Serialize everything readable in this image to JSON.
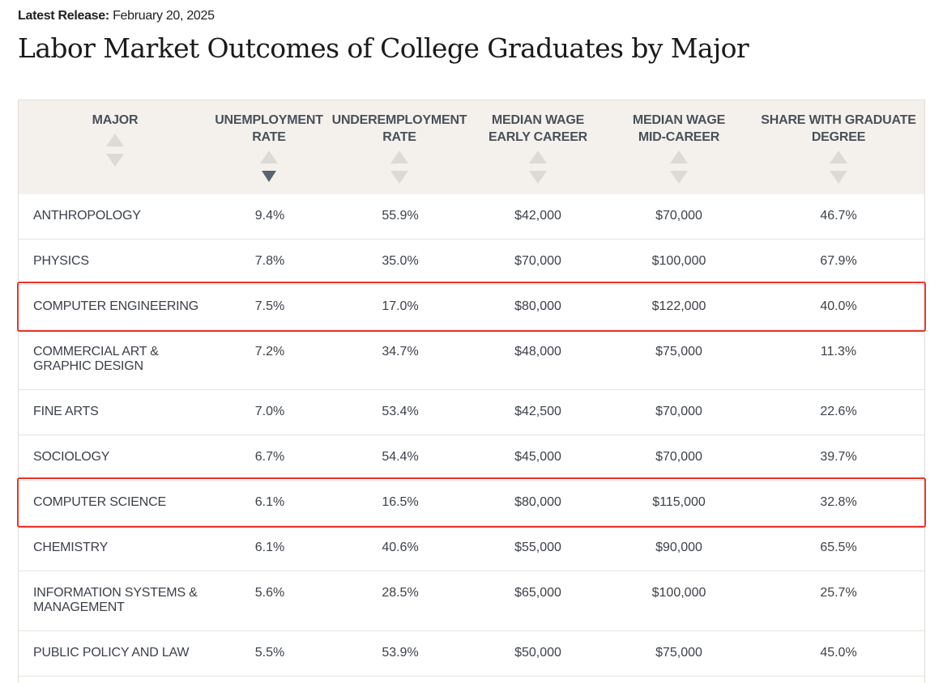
{
  "release": {
    "label": "Latest Release:",
    "date": "February 20, 2025"
  },
  "title": "Labor Market Outcomes of College Graduates by Major",
  "columns": [
    {
      "line1": "MAJOR",
      "line2": ""
    },
    {
      "line1": "UNEMPLOYMENT",
      "line2": "RATE"
    },
    {
      "line1": "UNDEREMPLOYMENT",
      "line2": "RATE"
    },
    {
      "line1": "MEDIAN WAGE",
      "line2": "EARLY CAREER"
    },
    {
      "line1": "MEDIAN WAGE",
      "line2": "MID-CAREER"
    },
    {
      "line1": "SHARE WITH GRADUATE",
      "line2": "DEGREE"
    }
  ],
  "sort": {
    "column": "UNEMPLOYMENT RATE",
    "direction": "descending"
  },
  "rows": [
    {
      "major": "ANTHROPOLOGY",
      "unemployment": "9.4%",
      "underemployment": "55.9%",
      "early": "$42,000",
      "mid": "$70,000",
      "grad": "46.7%"
    },
    {
      "major": "PHYSICS",
      "unemployment": "7.8%",
      "underemployment": "35.0%",
      "early": "$70,000",
      "mid": "$100,000",
      "grad": "67.9%"
    },
    {
      "major": "COMPUTER ENGINEERING",
      "unemployment": "7.5%",
      "underemployment": "17.0%",
      "early": "$80,000",
      "mid": "$122,000",
      "grad": "40.0%"
    },
    {
      "major": "COMMERCIAL ART & GRAPHIC DESIGN",
      "unemployment": "7.2%",
      "underemployment": "34.7%",
      "early": "$48,000",
      "mid": "$75,000",
      "grad": "11.3%"
    },
    {
      "major": "FINE ARTS",
      "unemployment": "7.0%",
      "underemployment": "53.4%",
      "early": "$42,500",
      "mid": "$70,000",
      "grad": "22.6%"
    },
    {
      "major": "SOCIOLOGY",
      "unemployment": "6.7%",
      "underemployment": "54.4%",
      "early": "$45,000",
      "mid": "$70,000",
      "grad": "39.7%"
    },
    {
      "major": "COMPUTER SCIENCE",
      "unemployment": "6.1%",
      "underemployment": "16.5%",
      "early": "$80,000",
      "mid": "$115,000",
      "grad": "32.8%"
    },
    {
      "major": "CHEMISTRY",
      "unemployment": "6.1%",
      "underemployment": "40.6%",
      "early": "$55,000",
      "mid": "$90,000",
      "grad": "65.5%"
    },
    {
      "major": "INFORMATION SYSTEMS & MANAGEMENT",
      "unemployment": "5.6%",
      "underemployment": "28.5%",
      "early": "$65,000",
      "mid": "$100,000",
      "grad": "25.7%"
    },
    {
      "major": "PUBLIC POLICY AND LAW",
      "unemployment": "5.5%",
      "underemployment": "53.9%",
      "early": "$50,000",
      "mid": "$75,000",
      "grad": "45.0%"
    }
  ],
  "highlighted_majors": [
    "COMPUTER ENGINEERING",
    "COMPUTER SCIENCE"
  ],
  "colors": {
    "header_bg": "#f4f1ed",
    "highlight_border": "#e8342a",
    "sort_active": "#5a6470",
    "sort_inactive": "#dcdad6"
  }
}
